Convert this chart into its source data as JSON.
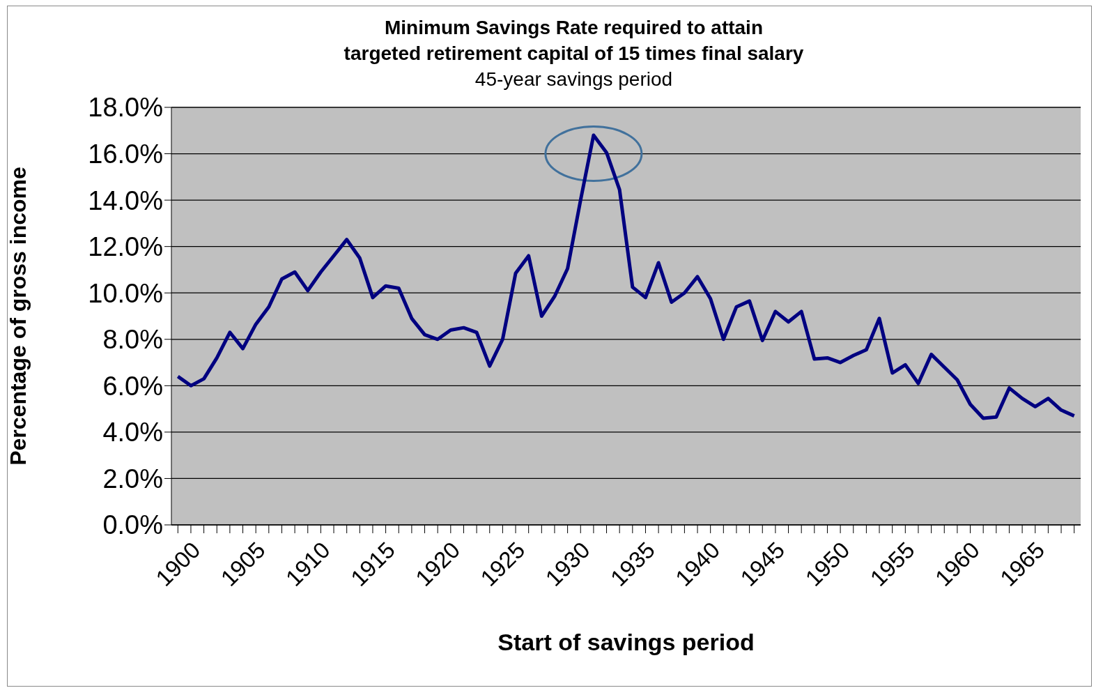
{
  "chart_data": {
    "type": "line",
    "title": "Minimum Savings Rate required to attain\ntargeted retirement capital of 15 times final salary",
    "subtitle": "45-year savings period",
    "xlabel": "Start of savings period",
    "ylabel": "Percentage of gross income",
    "categories": [
      "1900",
      null,
      null,
      null,
      null,
      "1905",
      null,
      null,
      null,
      null,
      "1910",
      null,
      null,
      null,
      null,
      "1915",
      null,
      null,
      null,
      null,
      "1920",
      null,
      null,
      null,
      null,
      "1925",
      null,
      null,
      null,
      null,
      "1930",
      null,
      null,
      null,
      null,
      "1935",
      null,
      null,
      null,
      null,
      "1940",
      null,
      null,
      null,
      null,
      "1945",
      null,
      null,
      null,
      null,
      "1950",
      null,
      null,
      null,
      null,
      "1955",
      null,
      null,
      null,
      null,
      "1960",
      null,
      null,
      null,
      null,
      "1965",
      null,
      null,
      null,
      null
    ],
    "series": [
      {
        "color": "#000080",
        "values": [
          6.4,
          6.0,
          6.3,
          7.2,
          8.3,
          7.6,
          8.65,
          9.4,
          10.6,
          10.9,
          10.1,
          10.9,
          11.6,
          12.3,
          11.5,
          9.8,
          10.3,
          10.2,
          8.9,
          8.2,
          8.0,
          8.4,
          8.5,
          8.3,
          6.85,
          8.0,
          10.85,
          11.6,
          9.0,
          9.85,
          11.05,
          14.0,
          16.8,
          16.05,
          14.45,
          10.25,
          9.8,
          11.3,
          9.6,
          10.0,
          10.7,
          9.75,
          8.0,
          9.4,
          9.65,
          7.95,
          9.2,
          8.75,
          9.2,
          7.15,
          7.2,
          7.0,
          7.3,
          7.55,
          8.9,
          6.55,
          6.9,
          6.1,
          7.35,
          6.8,
          6.25,
          5.2,
          4.6,
          4.65,
          5.9,
          5.45,
          5.1,
          5.45,
          4.95,
          4.7
        ]
      }
    ],
    "ylim": [
      0,
      18
    ],
    "yticks": [
      {
        "value": 0,
        "label": "0.0%"
      },
      {
        "value": 2,
        "label": "2.0%"
      },
      {
        "value": 4,
        "label": "4.0%"
      },
      {
        "value": 6,
        "label": "6.0%"
      },
      {
        "value": 8,
        "label": "8.0%"
      },
      {
        "value": 10,
        "label": "10.0%"
      },
      {
        "value": 12,
        "label": "12.0%"
      },
      {
        "value": 14,
        "label": "14.0%"
      },
      {
        "value": 16,
        "label": "16.0%"
      },
      {
        "value": 18,
        "label": "18.0%"
      }
    ],
    "grid": "y",
    "legend": false,
    "marker": "none",
    "line_style": "solid"
  }
}
